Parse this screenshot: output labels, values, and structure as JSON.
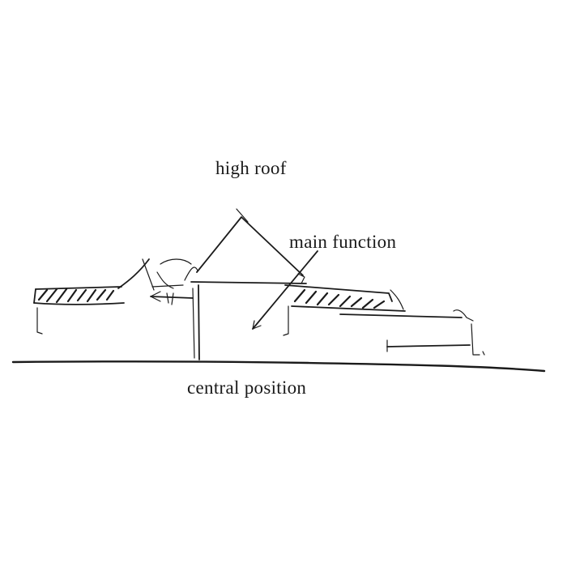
{
  "labels": {
    "high_roof": "high roof",
    "main_function": "main function",
    "central_position": "central position"
  }
}
